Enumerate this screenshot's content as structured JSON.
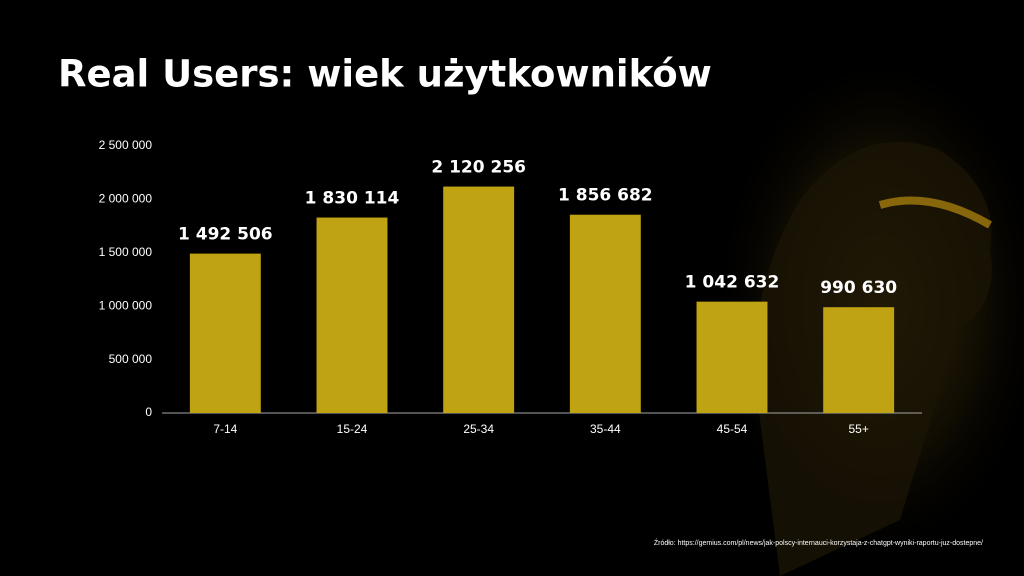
{
  "chart_data": {
    "type": "bar",
    "title": "Real Users: wiek użytkowników",
    "categories": [
      "7-14",
      "15-24",
      "25-34",
      "35-44",
      "45-54",
      "55+"
    ],
    "values": [
      1492506,
      1830114,
      2120256,
      1856682,
      1042632,
      990630
    ],
    "value_labels": [
      "1 492 506",
      "1 830 114",
      "2 120 256",
      "1 856 682",
      "1 042 632",
      "990 630"
    ],
    "color": "#bfa313",
    "ylim": [
      0,
      2500000
    ],
    "yticks": [
      0,
      {
        "value": 500000,
        "label": "500 000"
      },
      {
        "value": 1000000,
        "label": "1 000 000"
      },
      {
        "value": 1500000,
        "label": "1 500 000"
      },
      {
        "value": 2000000,
        "label": "2 000 000"
      },
      {
        "value": 2500000,
        "label": "2 500 000"
      }
    ],
    "grid": false,
    "source": "Źródło: https://gemius.com/pl/news/jak-polscy-internauci-korzystaja-z-chatgpt-wyniki-raportu-juz-dostepne/"
  }
}
